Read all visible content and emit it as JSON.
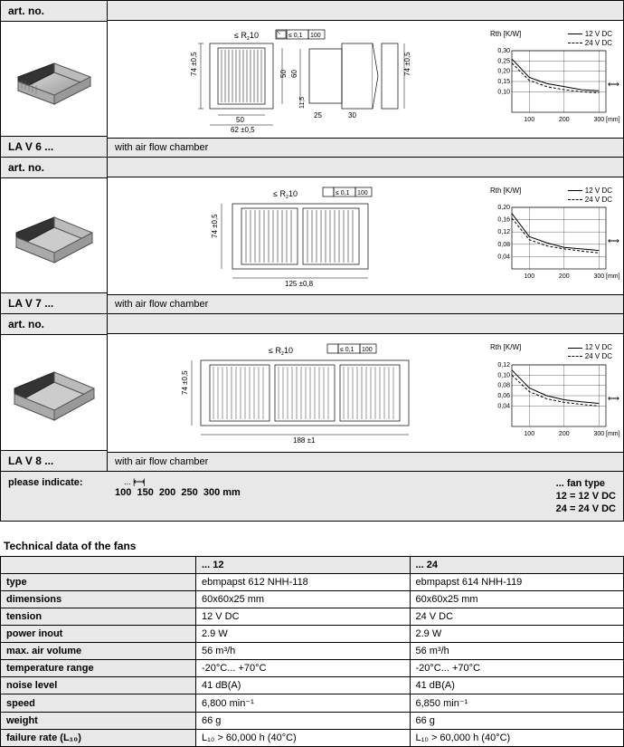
{
  "products": {
    "lav6": {
      "art_label": "art. no.",
      "model": "LA V 6 ...",
      "subtitle": "with air flow chamber",
      "dims": {
        "width_tol": "74 ±0,5",
        "inner_w": "50",
        "outer_w": "50",
        "outer_w2": "62 ±0,5",
        "side_h": "60",
        "side_inner": "11,5 ±0,5",
        "side_d1": "25",
        "side_d2": "30",
        "side_tol": "74 ±0,5",
        "rz": "≤ Rz10",
        "flat": "≤ 0,1 | 100"
      },
      "chart": {
        "ylabel": "Rth [K/W]",
        "ymax": 0.3,
        "yticks": [
          "0,30",
          "0,25",
          "0,20",
          "0,15",
          "0,10"
        ],
        "xticks": [
          "100",
          "200",
          "300"
        ],
        "xunit": "[mm]",
        "legend12": "12 V DC",
        "legend24": "24 V DC",
        "series12": [
          [
            50,
            0.26
          ],
          [
            100,
            0.17
          ],
          [
            150,
            0.14
          ],
          [
            200,
            0.125
          ],
          [
            250,
            0.11
          ],
          [
            300,
            0.105
          ]
        ],
        "series24": [
          [
            50,
            0.24
          ],
          [
            100,
            0.155
          ],
          [
            150,
            0.125
          ],
          [
            200,
            0.11
          ],
          [
            250,
            0.1
          ],
          [
            300,
            0.095
          ]
        ]
      }
    },
    "lav7": {
      "art_label": "art. no.",
      "model": "LA V 7 ...",
      "subtitle": "with air flow chamber",
      "dims": {
        "width_tol": "74 ±0,5",
        "base_w": "125 ±0,8",
        "rz": "≤ Rz10",
        "flat": "≤ 0,1 | 100"
      },
      "chart": {
        "ylabel": "Rth [K/W]",
        "ymax": 0.2,
        "yticks": [
          "0,20",
          "0,16",
          "0,12",
          "0,08",
          "0,04"
        ],
        "xticks": [
          "100",
          "200",
          "300"
        ],
        "xunit": "[mm]",
        "legend12": "12 V DC",
        "legend24": "24 V DC",
        "series12": [
          [
            50,
            0.18
          ],
          [
            100,
            0.105
          ],
          [
            150,
            0.085
          ],
          [
            200,
            0.07
          ],
          [
            250,
            0.065
          ],
          [
            300,
            0.06
          ]
        ],
        "series24": [
          [
            50,
            0.165
          ],
          [
            100,
            0.095
          ],
          [
            150,
            0.075
          ],
          [
            200,
            0.065
          ],
          [
            250,
            0.058
          ],
          [
            300,
            0.052
          ]
        ]
      }
    },
    "lav8": {
      "art_label": "art. no.",
      "model": "LA V 8 ...",
      "subtitle": "with air flow chamber",
      "dims": {
        "width_tol": "74 ±0,5",
        "base_w": "188 ±1",
        "rz": "≤ Rz10",
        "flat": "≤ 0,1 | 100"
      },
      "chart": {
        "ylabel": "Rth [K/W]",
        "ymax": 0.12,
        "yticks": [
          "0,12",
          "0,10",
          "0,08",
          "0,06",
          "0,04"
        ],
        "xticks": [
          "100",
          "200",
          "300"
        ],
        "xunit": "[mm]",
        "legend12": "12 V DC",
        "legend24": "24 V DC",
        "series12": [
          [
            50,
            0.11
          ],
          [
            100,
            0.075
          ],
          [
            150,
            0.06
          ],
          [
            200,
            0.052
          ],
          [
            250,
            0.048
          ],
          [
            300,
            0.045
          ]
        ],
        "series24": [
          [
            50,
            0.1
          ],
          [
            100,
            0.068
          ],
          [
            150,
            0.054
          ],
          [
            200,
            0.047
          ],
          [
            250,
            0.043
          ],
          [
            300,
            0.04
          ]
        ]
      }
    }
  },
  "indicate": {
    "label": "please indicate:",
    "arrow": "... ↹",
    "lengths": "100  150  200  250  300 mm",
    "fan_label": "... fan type",
    "fan12": "12 =  12 V DC",
    "fan24": "24 =  24 V DC"
  },
  "tech": {
    "title": "Technical data of the fans",
    "col12": "... 12",
    "col24": "... 24",
    "rows": [
      {
        "label": "type",
        "v12": "ebmpapst 612 NHH-118",
        "v24": "ebmpapst 614 NHH-119"
      },
      {
        "label": "dimensions",
        "v12": "60x60x25 mm",
        "v24": "60x60x25 mm"
      },
      {
        "label": "tension",
        "v12": "12 V DC",
        "v24": "24 V DC"
      },
      {
        "label": "power inout",
        "v12": "2.9 W",
        "v24": "2.9 W"
      },
      {
        "label": "max. air volume",
        "v12": "56 m³/h",
        "v24": "56 m³/h"
      },
      {
        "label": "temperature range",
        "v12": "-20°C... +70°C",
        "v24": "-20°C... +70°C"
      },
      {
        "label": "noise level",
        "v12": "41 dB(A)",
        "v24": "41 dB(A)"
      },
      {
        "label": "speed",
        "v12": "6,800 min⁻¹",
        "v24": "6,850 min⁻¹"
      },
      {
        "label": "weight",
        "v12": "66 g",
        "v24": "66 g"
      },
      {
        "label": "failure rate (L₁₀)",
        "v12": "L₁₀ > 60,000 h (40°C)",
        "v24": "L₁₀ > 60,000 h (40°C)"
      }
    ]
  },
  "style": {
    "grid_color": "#000",
    "bg": "#fff",
    "header_bg": "#e8e8e8",
    "font_size": 11
  }
}
